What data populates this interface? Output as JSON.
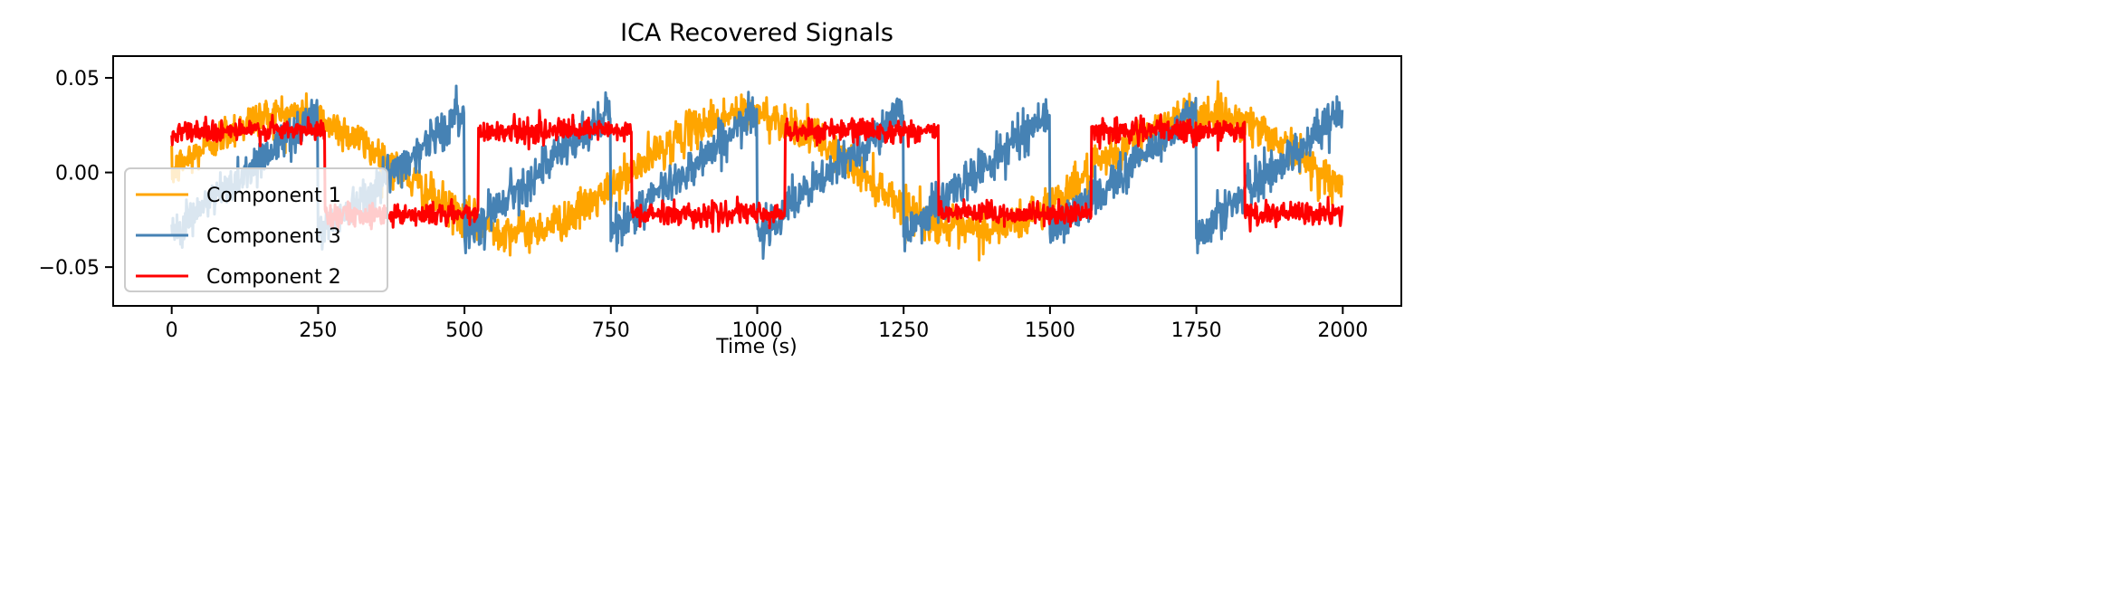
{
  "chart_data": {
    "type": "line",
    "title": "ICA Recovered Signals",
    "xlabel": "Time (s)",
    "ylabel": "",
    "xlim": [
      -100,
      2100
    ],
    "ylim": [
      -0.0705,
      0.0615
    ],
    "xticks": [
      0,
      250,
      500,
      750,
      1000,
      1250,
      1500,
      1750,
      2000
    ],
    "xtick_labels": [
      "0",
      "250",
      "500",
      "750",
      "1000",
      "1250",
      "1500",
      "1750",
      "2000"
    ],
    "yticks": [
      0.05,
      0.0,
      -0.05
    ],
    "ytick_labels": [
      "0.05",
      "0.00",
      "−0.05"
    ],
    "grid": false,
    "legend_position": "lower-left",
    "n_samples": 2000,
    "series": [
      {
        "name": "Component 1",
        "color": "#ffa500",
        "shape": "sine",
        "amplitude": 0.031,
        "period_samples": 785,
        "noise": 0.0085,
        "approx_peaks_at": [
          196,
          981,
          1767
        ],
        "approx_troughs_at": [
          589,
          1374
        ]
      },
      {
        "name": "Component 3",
        "color": "#4682b4",
        "shape": "sawtooth",
        "amplitude": 0.032,
        "period_samples": 250,
        "noise": 0.009,
        "drops_at": [
          250,
          500,
          750,
          1000,
          1250,
          1500,
          1750
        ]
      },
      {
        "name": "Component 2",
        "color": "#ff0000",
        "shape": "square",
        "amplitude": 0.022,
        "period_samples": 523.6,
        "noise": 0.005,
        "switches_at": [
          262,
          524,
          785,
          1047,
          1309,
          1571,
          1833
        ]
      }
    ]
  }
}
